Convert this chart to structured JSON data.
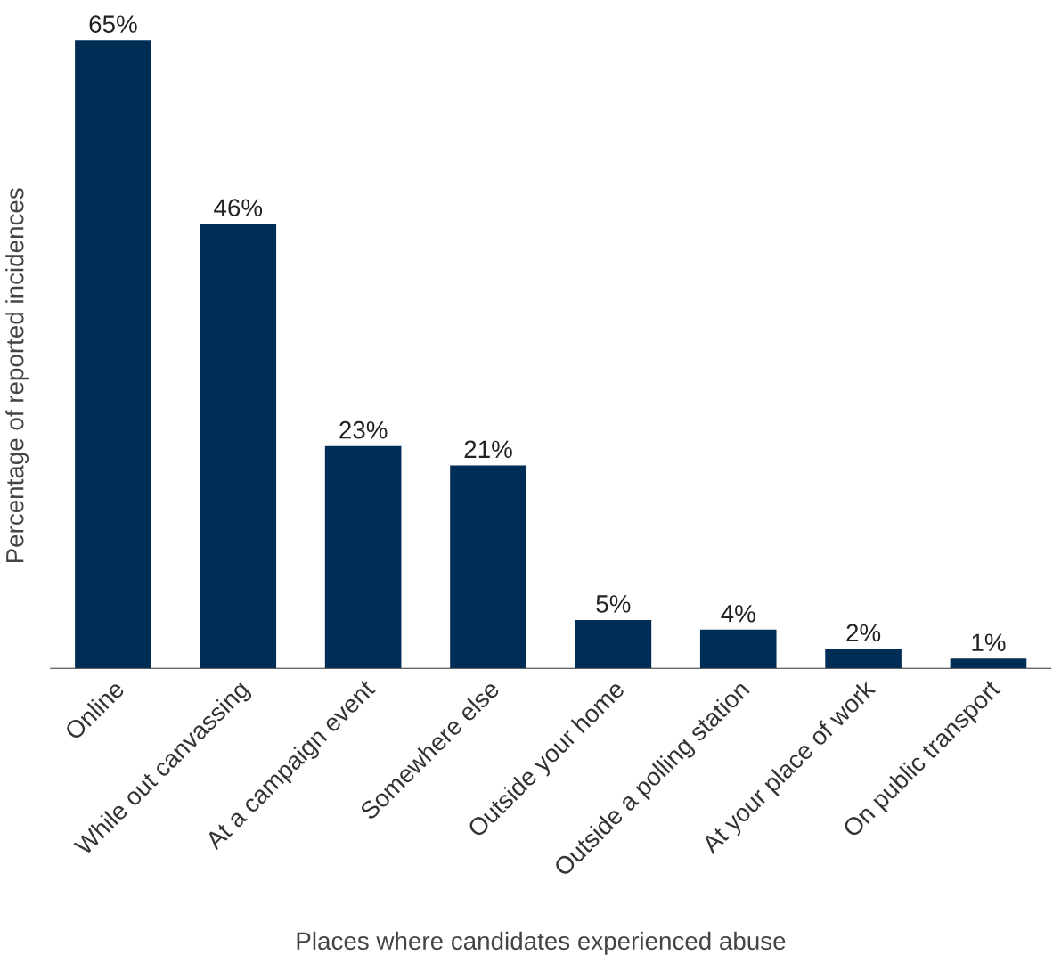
{
  "chart_data": {
    "type": "bar",
    "xlabel": "Places where candidates experienced abuse",
    "ylabel": "Percentage of reported incidences",
    "categories": [
      "Online",
      "While out canvassing",
      "At a campaign event",
      "Somewhere else",
      "Outside your home",
      "Outside a polling station",
      "At your place of work",
      "On public transport"
    ],
    "values": [
      65,
      46,
      23,
      21,
      5,
      4,
      2,
      1
    ],
    "value_labels": [
      "65%",
      "46%",
      "23%",
      "21%",
      "5%",
      "4%",
      "2%",
      "1%"
    ],
    "color": "#002d56",
    "grid": false,
    "legend": false
  }
}
